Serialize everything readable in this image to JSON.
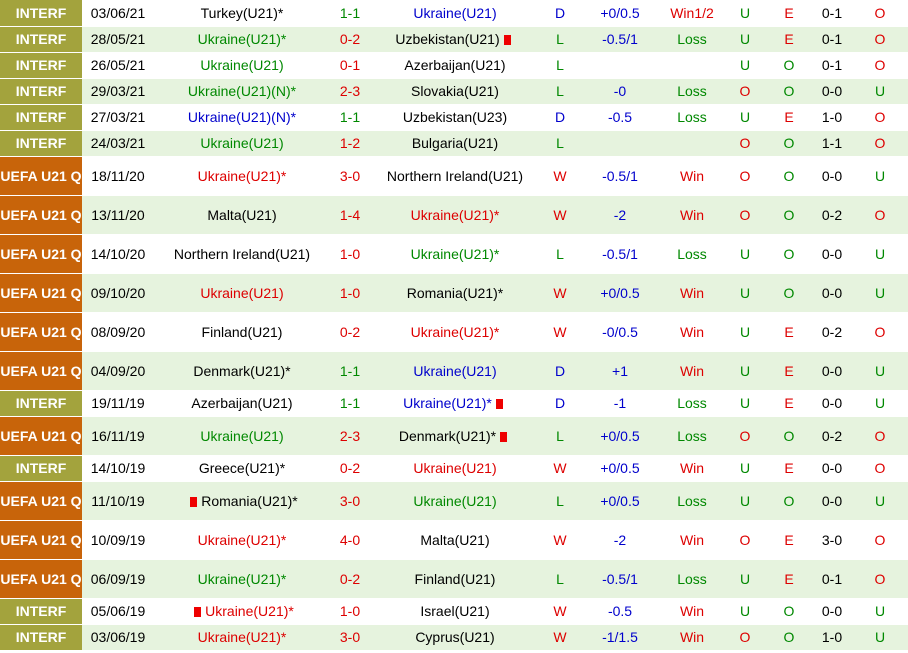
{
  "rows": [
    {
      "league": "INTERF",
      "date": "03/06/21",
      "home": "Turkey(U21)*",
      "home_color": "#000000",
      "score": "1-1",
      "score_color": "#008800",
      "away": "Ukraine(U21)",
      "away_color": "#0000cc",
      "result": "D",
      "handicap": "+0/0.5",
      "handicap_result": "Win1/2",
      "ou": "U",
      "oe": "E",
      "half": "0-1",
      "ou2": "O"
    },
    {
      "league": "INTERF",
      "date": "28/05/21",
      "home": "Ukraine(U21)*",
      "home_color": "#008800",
      "score": "0-2",
      "score_color": "#dd0000",
      "away": "Uzbekistan(U21)",
      "away_color": "#000000",
      "away_card": true,
      "result": "L",
      "handicap": "-0.5/1",
      "handicap_result": "Loss",
      "ou": "U",
      "oe": "E",
      "half": "0-1",
      "ou2": "O"
    },
    {
      "league": "INTERF",
      "date": "26/05/21",
      "home": "Ukraine(U21)",
      "home_color": "#008800",
      "score": "0-1",
      "score_color": "#dd0000",
      "away": "Azerbaijan(U21)",
      "away_color": "#000000",
      "result": "L",
      "ou": "U",
      "oe": "O",
      "half": "0-1",
      "ou2": "O"
    },
    {
      "league": "INTERF",
      "date": "29/03/21",
      "home": "Ukraine(U21)(N)*",
      "home_color": "#008800",
      "score": "2-3",
      "score_color": "#dd0000",
      "away": "Slovakia(U21)",
      "away_color": "#000000",
      "result": "L",
      "handicap": "-0",
      "handicap_result": "Loss",
      "ou": "O",
      "oe": "O",
      "half": "0-0",
      "ou2": "U"
    },
    {
      "league": "INTERF",
      "date": "27/03/21",
      "home": "Ukraine(U21)(N)*",
      "home_color": "#0000cc",
      "score": "1-1",
      "score_color": "#008800",
      "away": "Uzbekistan(U23)",
      "away_color": "#000000",
      "result": "D",
      "handicap": "-0.5",
      "handicap_result": "Loss",
      "ou": "U",
      "oe": "E",
      "half": "1-0",
      "ou2": "O"
    },
    {
      "league": "INTERF",
      "date": "24/03/21",
      "home": "Ukraine(U21)",
      "home_color": "#008800",
      "score": "1-2",
      "score_color": "#dd0000",
      "away": "Bulgaria(U21)",
      "away_color": "#000000",
      "result": "L",
      "ou": "O",
      "oe": "O",
      "half": "1-1",
      "ou2": "O"
    },
    {
      "league": "UEFA U21 Q",
      "date": "18/11/20",
      "home": "Ukraine(U21)*",
      "home_color": "#dd0000",
      "score": "3-0",
      "score_color": "#dd0000",
      "away": "Northern Ireland(U21)",
      "away_color": "#000000",
      "result": "W",
      "handicap": "-0.5/1",
      "handicap_result": "Win",
      "ou": "O",
      "oe": "O",
      "half": "0-0",
      "ou2": "U"
    },
    {
      "league": "UEFA U21 Q",
      "date": "13/11/20",
      "home": "Malta(U21)",
      "home_color": "#000000",
      "score": "1-4",
      "score_color": "#dd0000",
      "away": "Ukraine(U21)*",
      "away_color": "#dd0000",
      "result": "W",
      "handicap": "-2",
      "handicap_result": "Win",
      "ou": "O",
      "oe": "O",
      "half": "0-2",
      "ou2": "O"
    },
    {
      "league": "UEFA U21 Q",
      "date": "14/10/20",
      "home": "Northern Ireland(U21)",
      "home_color": "#000000",
      "score": "1-0",
      "score_color": "#dd0000",
      "away": "Ukraine(U21)*",
      "away_color": "#008800",
      "result": "L",
      "handicap": "-0.5/1",
      "handicap_result": "Loss",
      "ou": "U",
      "oe": "O",
      "half": "0-0",
      "ou2": "U"
    },
    {
      "league": "UEFA U21 Q",
      "date": "09/10/20",
      "home": "Ukraine(U21)",
      "home_color": "#dd0000",
      "score": "1-0",
      "score_color": "#dd0000",
      "away": "Romania(U21)*",
      "away_color": "#000000",
      "result": "W",
      "handicap": "+0/0.5",
      "handicap_result": "Win",
      "ou": "U",
      "oe": "O",
      "half": "0-0",
      "ou2": "U"
    },
    {
      "league": "UEFA U21 Q",
      "date": "08/09/20",
      "home": "Finland(U21)",
      "home_color": "#000000",
      "score": "0-2",
      "score_color": "#dd0000",
      "away": "Ukraine(U21)*",
      "away_color": "#dd0000",
      "result": "W",
      "handicap": "-0/0.5",
      "handicap_result": "Win",
      "ou": "U",
      "oe": "E",
      "half": "0-2",
      "ou2": "O"
    },
    {
      "league": "UEFA U21 Q",
      "date": "04/09/20",
      "home": "Denmark(U21)*",
      "home_color": "#000000",
      "score": "1-1",
      "score_color": "#008800",
      "away": "Ukraine(U21)",
      "away_color": "#0000cc",
      "result": "D",
      "handicap": "+1",
      "handicap_result": "Win",
      "ou": "U",
      "oe": "E",
      "half": "0-0",
      "ou2": "U"
    },
    {
      "league": "INTERF",
      "date": "19/11/19",
      "home": "Azerbaijan(U21)",
      "home_color": "#000000",
      "score": "1-1",
      "score_color": "#008800",
      "away": "Ukraine(U21)*",
      "away_color": "#0000cc",
      "away_card": true,
      "result": "D",
      "handicap": "-1",
      "handicap_result": "Loss",
      "ou": "U",
      "oe": "E",
      "half": "0-0",
      "ou2": "U"
    },
    {
      "league": "UEFA U21 Q",
      "date": "16/11/19",
      "home": "Ukraine(U21)",
      "home_color": "#008800",
      "score": "2-3",
      "score_color": "#dd0000",
      "away": "Denmark(U21)*",
      "away_color": "#000000",
      "away_card": true,
      "result": "L",
      "handicap": "+0/0.5",
      "handicap_result": "Loss",
      "ou": "O",
      "oe": "O",
      "half": "0-2",
      "ou2": "O"
    },
    {
      "league": "INTERF",
      "date": "14/10/19",
      "home": "Greece(U21)*",
      "home_color": "#000000",
      "score": "0-2",
      "score_color": "#dd0000",
      "away": "Ukraine(U21)",
      "away_color": "#dd0000",
      "result": "W",
      "handicap": "+0/0.5",
      "handicap_result": "Win",
      "ou": "U",
      "oe": "E",
      "half": "0-0",
      "ou2": "O"
    },
    {
      "league": "UEFA U21 Q",
      "date": "11/10/19",
      "home": "Romania(U21)*",
      "home_color": "#000000",
      "home_card": true,
      "score": "3-0",
      "score_color": "#dd0000",
      "away": "Ukraine(U21)",
      "away_color": "#008800",
      "result": "L",
      "handicap": "+0/0.5",
      "handicap_result": "Loss",
      "ou": "U",
      "oe": "O",
      "half": "0-0",
      "ou2": "U"
    },
    {
      "league": "UEFA U21 Q",
      "date": "10/09/19",
      "home": "Ukraine(U21)*",
      "home_color": "#dd0000",
      "score": "4-0",
      "score_color": "#dd0000",
      "away": "Malta(U21)",
      "away_color": "#000000",
      "result": "W",
      "handicap": "-2",
      "handicap_result": "Win",
      "ou": "O",
      "oe": "E",
      "half": "3-0",
      "ou2": "O"
    },
    {
      "league": "UEFA U21 Q",
      "date": "06/09/19",
      "home": "Ukraine(U21)*",
      "home_color": "#008800",
      "score": "0-2",
      "score_color": "#dd0000",
      "away": "Finland(U21)",
      "away_color": "#000000",
      "result": "L",
      "handicap": "-0.5/1",
      "handicap_result": "Loss",
      "ou": "U",
      "oe": "E",
      "half": "0-1",
      "ou2": "O"
    },
    {
      "league": "INTERF",
      "date": "05/06/19",
      "home": "Ukraine(U21)*",
      "home_color": "#dd0000",
      "home_card": true,
      "score": "1-0",
      "score_color": "#dd0000",
      "away": "Israel(U21)",
      "away_color": "#000000",
      "result": "W",
      "handicap": "-0.5",
      "handicap_result": "Win",
      "ou": "U",
      "oe": "O",
      "half": "0-0",
      "ou2": "U"
    },
    {
      "league": "INTERF",
      "date": "03/06/19",
      "home": "Ukraine(U21)*",
      "home_color": "#dd0000",
      "score": "3-0",
      "score_color": "#dd0000",
      "away": "Cyprus(U21)",
      "away_color": "#000000",
      "result": "W",
      "handicap": "-1/1.5",
      "handicap_result": "Win",
      "ou": "O",
      "oe": "O",
      "half": "1-0",
      "ou2": "U"
    }
  ]
}
